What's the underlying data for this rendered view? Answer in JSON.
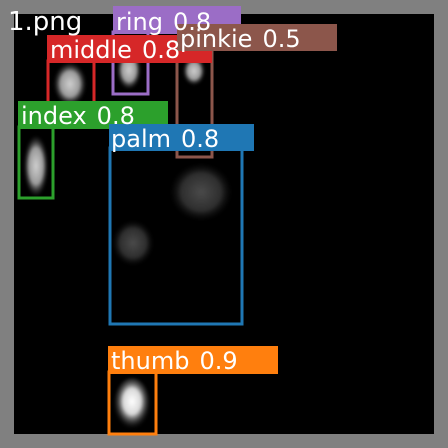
{
  "image": {
    "filename_label": "1.png"
  },
  "detections": [
    {
      "label": "ring",
      "score": "0.8",
      "color": "#9b6dc6"
    },
    {
      "label": "middle",
      "score": "0.8",
      "color": "#d62728"
    },
    {
      "label": "pinkie",
      "score": "0.5",
      "color": "#8c564b"
    },
    {
      "label": "index",
      "score": "0.8",
      "color": "#2ca02c"
    },
    {
      "label": "palm",
      "score": "0.8",
      "color": "#1f77b4"
    },
    {
      "label": "thumb",
      "score": "0.9",
      "color": "#ff7f0e"
    }
  ]
}
